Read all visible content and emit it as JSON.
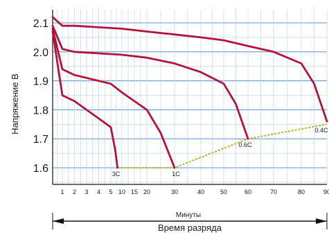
{
  "chart_data": {
    "type": "line",
    "ylabel": "Напряжение В",
    "xlabel": "Минуты",
    "xlabel_caption": "Время разряда",
    "yticks": [
      "2.1",
      "2.0",
      "1.9",
      "1.8",
      "1.7",
      "1.6"
    ],
    "xticks": [
      "1",
      "2",
      "3",
      "4",
      "5",
      "10",
      "15",
      "20",
      "30",
      "40",
      "50",
      "60",
      "70",
      "80",
      "90"
    ],
    "ylim": [
      1.45,
      2.13
    ],
    "grid": true,
    "colors": {
      "curve": "#b5123a",
      "cutoff": "#b7b52a",
      "grid_minor": "#b3cbe8",
      "grid_major": "#5f8fd0",
      "background": "#ffffff"
    },
    "series": [
      {
        "name": "3C",
        "x": [
          0,
          1,
          2,
          3,
          4,
          5,
          6,
          7,
          8
        ],
        "y": [
          2.07,
          1.85,
          1.83,
          1.8,
          1.77,
          1.74,
          1.7,
          1.66,
          1.6
        ]
      },
      {
        "name": "1C",
        "x": [
          0,
          1,
          2,
          5,
          10,
          15,
          20,
          25,
          30
        ],
        "y": [
          2.08,
          1.94,
          1.92,
          1.89,
          1.86,
          1.83,
          1.8,
          1.72,
          1.6
        ]
      },
      {
        "name": "0.6C",
        "x": [
          0,
          1,
          2,
          10,
          20,
          30,
          40,
          50,
          55,
          60
        ],
        "y": [
          2.09,
          2.01,
          2.0,
          1.99,
          1.98,
          1.96,
          1.93,
          1.89,
          1.82,
          1.7
        ]
      },
      {
        "name": "0.4C",
        "x": [
          0,
          1,
          2,
          10,
          20,
          30,
          40,
          50,
          60,
          70,
          80,
          85,
          90
        ],
        "y": [
          2.12,
          2.09,
          2.09,
          2.08,
          2.07,
          2.06,
          2.05,
          2.04,
          2.02,
          2.0,
          1.96,
          1.89,
          1.76
        ]
      }
    ],
    "cutoff_line": {
      "x": [
        8,
        30,
        60,
        90
      ],
      "y": [
        1.6,
        1.6,
        1.7,
        1.75
      ]
    }
  }
}
